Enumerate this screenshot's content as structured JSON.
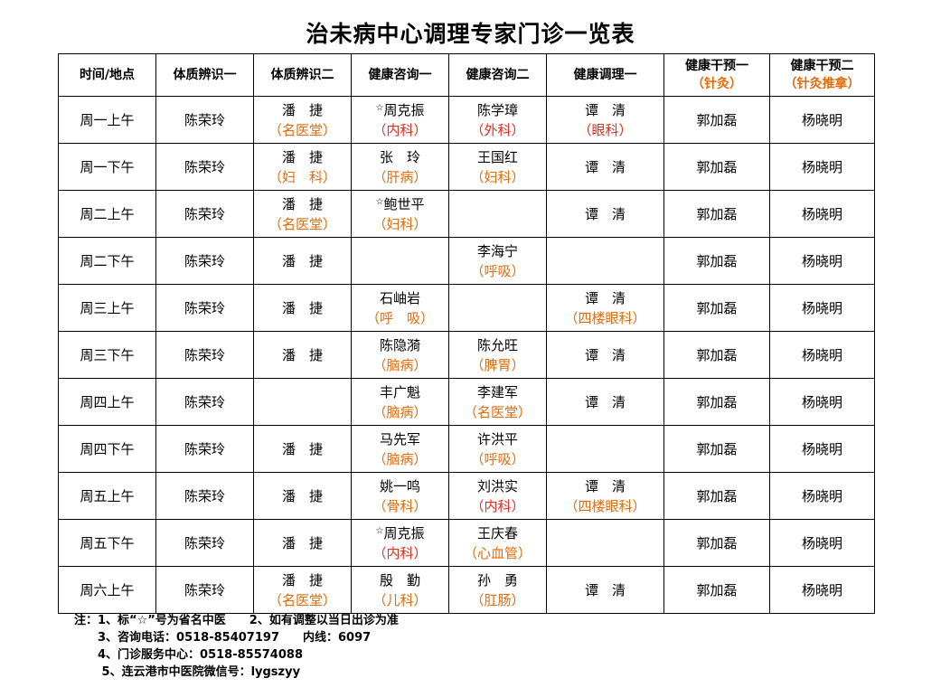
{
  "title": "治未病中心调理专家门诊一览表",
  "colors": {
    "accent_orange": "#e26b0a",
    "accent_red": "#e03020"
  },
  "table": {
    "headers": [
      {
        "main": "时间/地点",
        "sub": ""
      },
      {
        "main": "体质辨识一",
        "sub": ""
      },
      {
        "main": "体质辨识二",
        "sub": ""
      },
      {
        "main": "健康咨询一",
        "sub": ""
      },
      {
        "main": "健康咨询二",
        "sub": ""
      },
      {
        "main": "健康调理一",
        "sub": ""
      },
      {
        "main": "健康干预一",
        "sub": "（针灸）"
      },
      {
        "main": "健康干预二",
        "sub": "（针灸推拿）"
      }
    ],
    "rows": [
      {
        "time": "周一上午",
        "c1": {
          "name": "陈荣玲",
          "dept": ""
        },
        "c2": {
          "name": "潘　捷",
          "dept": "（名医堂）"
        },
        "c3": {
          "name": "周克振",
          "dept": "（内科）",
          "star": "☆"
        },
        "c4": {
          "name": "陈学璋",
          "dept": "（外科）"
        },
        "c5": {
          "name": "谭　清",
          "dept": "（眼科）"
        },
        "c6": {
          "name": "郭加磊",
          "dept": ""
        },
        "c7": {
          "name": "杨晓明",
          "dept": ""
        }
      },
      {
        "time": "周一下午",
        "c1": {
          "name": "陈荣玲",
          "dept": ""
        },
        "c2": {
          "name": "潘　捷",
          "dept": "（妇　科）"
        },
        "c3": {
          "name": "张　玲",
          "dept": "（肝病）"
        },
        "c4": {
          "name": "王国红",
          "dept": "（妇科）"
        },
        "c5": {
          "name": "谭　清",
          "dept": ""
        },
        "c6": {
          "name": "郭加磊",
          "dept": ""
        },
        "c7": {
          "name": "杨晓明",
          "dept": ""
        }
      },
      {
        "time": "周二上午",
        "c1": {
          "name": "陈荣玲",
          "dept": ""
        },
        "c2": {
          "name": "潘　捷",
          "dept": "（名医堂）"
        },
        "c3": {
          "name": "鲍世平",
          "dept": "（妇科）",
          "star": "☆"
        },
        "c4": {
          "name": "",
          "dept": ""
        },
        "c5": {
          "name": "谭　清",
          "dept": ""
        },
        "c6": {
          "name": "郭加磊",
          "dept": ""
        },
        "c7": {
          "name": "杨晓明",
          "dept": ""
        }
      },
      {
        "time": "周二下午",
        "c1": {
          "name": "陈荣玲",
          "dept": ""
        },
        "c2": {
          "name": "潘　捷",
          "dept": ""
        },
        "c3": {
          "name": "",
          "dept": ""
        },
        "c4": {
          "name": "李海宁",
          "dept": "（呼吸）"
        },
        "c5": {
          "name": "",
          "dept": ""
        },
        "c6": {
          "name": "郭加磊",
          "dept": ""
        },
        "c7": {
          "name": "杨晓明",
          "dept": ""
        }
      },
      {
        "time": "周三上午",
        "c1": {
          "name": "陈荣玲",
          "dept": ""
        },
        "c2": {
          "name": "潘　捷",
          "dept": ""
        },
        "c3": {
          "name": "石岫岩",
          "dept": "（呼　吸）"
        },
        "c4": {
          "name": "",
          "dept": ""
        },
        "c5": {
          "name": "谭　清",
          "dept": "（四楼眼科）"
        },
        "c6": {
          "name": "郭加磊",
          "dept": ""
        },
        "c7": {
          "name": "杨晓明",
          "dept": ""
        }
      },
      {
        "time": "周三下午",
        "c1": {
          "name": "陈荣玲",
          "dept": ""
        },
        "c2": {
          "name": "潘　捷",
          "dept": ""
        },
        "c3": {
          "name": "陈隐漪",
          "dept": "（脑病）"
        },
        "c4": {
          "name": "陈允旺",
          "dept": "（脾胃）"
        },
        "c5": {
          "name": "谭　清",
          "dept": ""
        },
        "c6": {
          "name": "郭加磊",
          "dept": ""
        },
        "c7": {
          "name": "杨晓明",
          "dept": ""
        }
      },
      {
        "time": "周四上午",
        "c1": {
          "name": "陈荣玲",
          "dept": ""
        },
        "c2": {
          "name": "",
          "dept": ""
        },
        "c3": {
          "name": "丰广魁",
          "dept": "（脑病）"
        },
        "c4": {
          "name": "李建军",
          "dept": "（名医堂）"
        },
        "c5": {
          "name": "谭　清",
          "dept": ""
        },
        "c6": {
          "name": "郭加磊",
          "dept": ""
        },
        "c7": {
          "name": "杨晓明",
          "dept": ""
        }
      },
      {
        "time": "周四下午",
        "c1": {
          "name": "陈荣玲",
          "dept": ""
        },
        "c2": {
          "name": "潘　捷",
          "dept": ""
        },
        "c3": {
          "name": "马先军",
          "dept": "（脑病）"
        },
        "c4": {
          "name": "许洪平",
          "dept": "（呼吸）"
        },
        "c5": {
          "name": "",
          "dept": ""
        },
        "c6": {
          "name": "郭加磊",
          "dept": ""
        },
        "c7": {
          "name": "杨晓明",
          "dept": ""
        }
      },
      {
        "time": "周五上午",
        "c1": {
          "name": "陈荣玲",
          "dept": ""
        },
        "c2": {
          "name": "潘　捷",
          "dept": ""
        },
        "c3": {
          "name": "姚一鸣",
          "dept": "（骨科）"
        },
        "c4": {
          "name": "刘洪实",
          "dept": "（内科）"
        },
        "c5": {
          "name": "谭　清",
          "dept": "（四楼眼科）"
        },
        "c6": {
          "name": "郭加磊",
          "dept": ""
        },
        "c7": {
          "name": "杨晓明",
          "dept": ""
        }
      },
      {
        "time": "周五下午",
        "c1": {
          "name": "陈荣玲",
          "dept": ""
        },
        "c2": {
          "name": "潘　捷",
          "dept": ""
        },
        "c3": {
          "name": "周克振",
          "dept": "（内科）",
          "star": "☆"
        },
        "c4": {
          "name": "王庆春",
          "dept": "（心血管）"
        },
        "c5": {
          "name": "",
          "dept": ""
        },
        "c6": {
          "name": "郭加磊",
          "dept": ""
        },
        "c7": {
          "name": "杨晓明",
          "dept": ""
        }
      },
      {
        "time": "周六上午",
        "c1": {
          "name": "陈荣玲",
          "dept": ""
        },
        "c2": {
          "name": "潘　捷",
          "dept": "（名医堂）"
        },
        "c3": {
          "name": "殷　勤",
          "dept": "（儿科）"
        },
        "c4": {
          "name": "孙　勇",
          "dept": "（肛肠）"
        },
        "c5": {
          "name": "谭　清",
          "dept": ""
        },
        "c6": {
          "name": "郭加磊",
          "dept": ""
        },
        "c7": {
          "name": "杨晓明",
          "dept": ""
        }
      }
    ]
  },
  "notes": [
    "注：1、标“☆”号为省名中医　　2、如有调整以当日出诊为准",
    "　　3、咨询电话：0518-85407197　　内线：6097",
    "　　4、门诊服务中心：0518-85574088",
    "　　 5、连云港市中医院微信号：lygszyy"
  ]
}
